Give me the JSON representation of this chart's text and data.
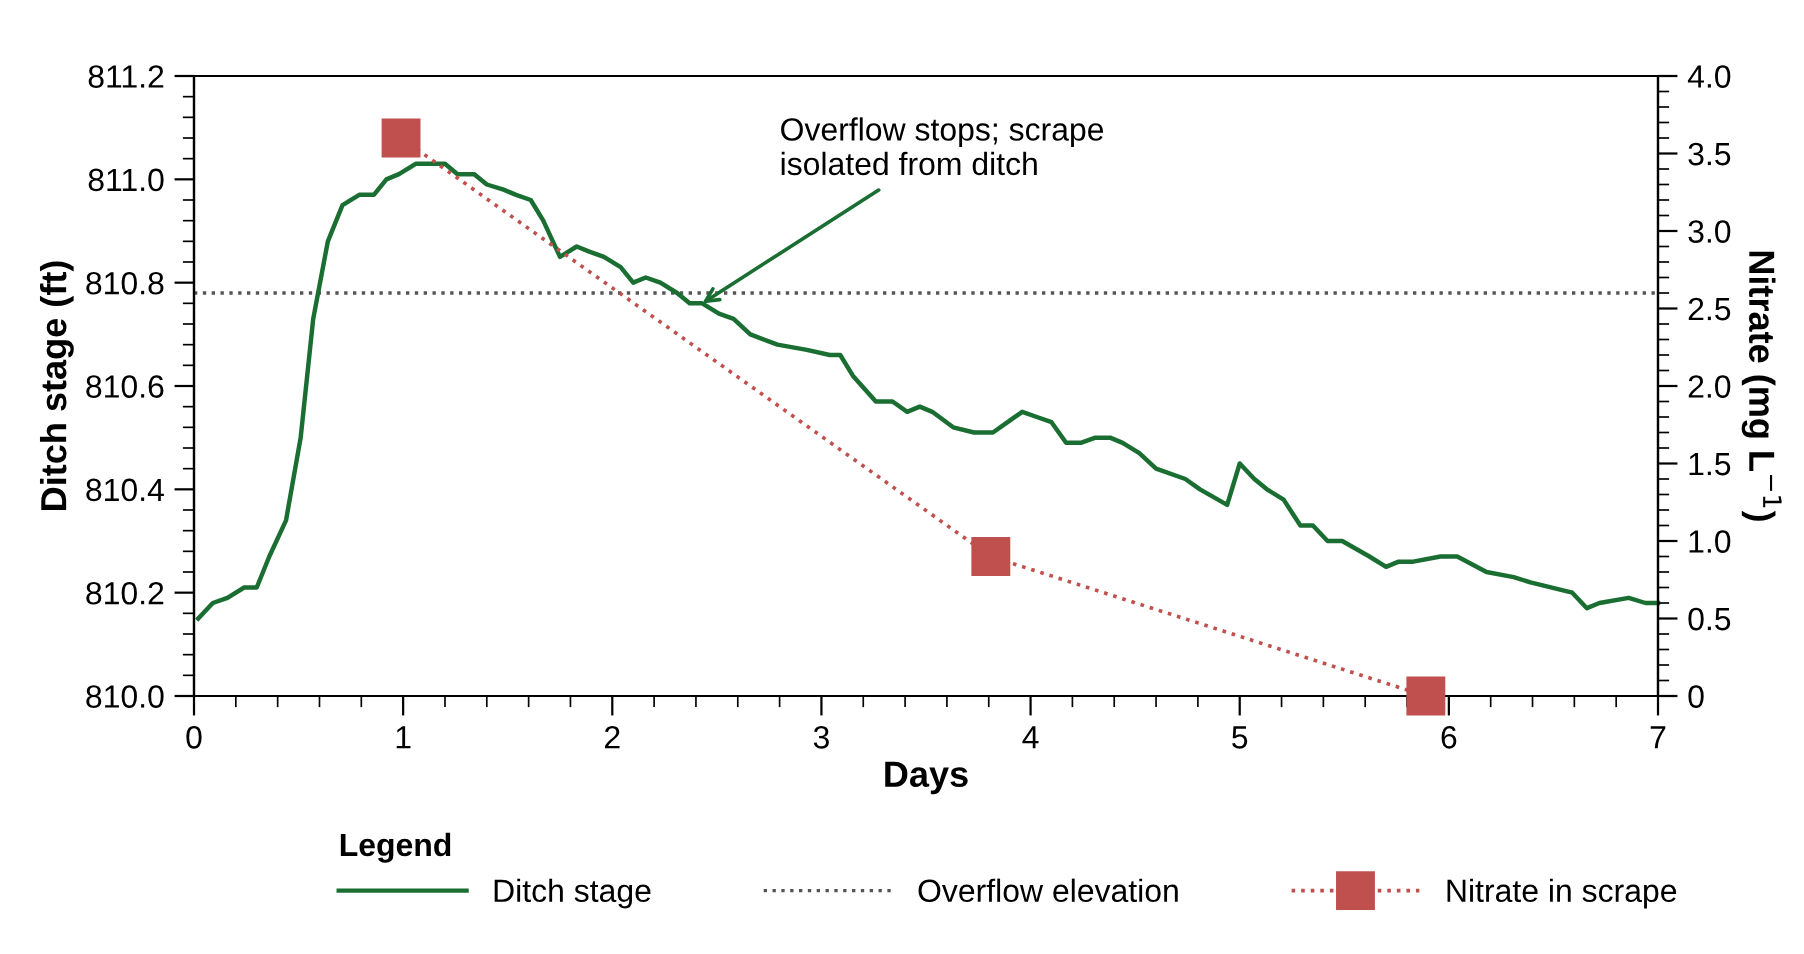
{
  "chart_data": {
    "type": "line",
    "xlabel": "Days",
    "ylabel": "Ditch stage (ft)",
    "y2label": "Nitrate (mg L$^{−1}$)",
    "legend_title": "Legend",
    "xlim": [
      0,
      7
    ],
    "xticks": [
      0,
      1,
      2,
      3,
      4,
      5,
      6,
      7
    ],
    "ylim": [
      810.0,
      811.2
    ],
    "yticks": [
      {
        "value": 810.0,
        "label": "810.0"
      },
      {
        "value": 810.2,
        "label": "810.2"
      },
      {
        "value": 810.4,
        "label": "810.4"
      },
      {
        "value": 810.6,
        "label": "810.6"
      },
      {
        "value": 810.8,
        "label": "810.8"
      },
      {
        "value": 811.0,
        "label": "811.0"
      },
      {
        "value": 811.2,
        "label": "811.2"
      }
    ],
    "y2lim": [
      0,
      4.0
    ],
    "y2ticks": [
      0,
      0.5,
      {
        "value": 1.0,
        "label": "1.0"
      },
      1.5,
      {
        "value": 2.0,
        "label": "2.0"
      },
      2.5,
      {
        "value": 3.0,
        "label": "3.0"
      },
      3.5,
      {
        "value": 4.0,
        "label": "4.0"
      }
    ],
    "grid": false,
    "legend": "bottom",
    "series": [
      {
        "name": "Ditch stage",
        "color": "#1a6e32",
        "marker": "none",
        "line_style": "solid",
        "x": [
          0.02,
          0.09,
          0.16,
          0.24,
          0.3,
          0.36,
          0.44,
          0.51,
          0.57,
          0.64,
          0.71,
          0.79,
          0.86,
          0.92,
          0.98,
          1.06,
          1.13,
          1.2,
          1.26,
          1.34,
          1.4,
          1.48,
          1.54,
          1.61,
          1.67,
          1.75,
          1.83,
          1.89,
          1.96,
          2.04,
          2.1,
          2.16,
          2.23,
          2.31,
          2.37,
          2.43,
          2.51,
          2.58,
          2.66,
          2.79,
          2.93,
          3.04,
          3.09,
          3.15,
          3.26,
          3.34,
          3.41,
          3.47,
          3.53,
          3.63,
          3.73,
          3.82,
          3.89,
          3.96,
          4.03,
          4.1,
          4.17,
          4.24,
          4.31,
          4.38,
          4.44,
          4.52,
          4.6,
          4.74,
          4.81,
          4.94,
          5.0,
          5.07,
          5.13,
          5.21,
          5.29,
          5.35,
          5.42,
          5.49,
          5.62,
          5.7,
          5.76,
          5.83,
          5.96,
          6.04,
          6.18,
          6.31,
          6.39,
          6.59,
          6.66,
          6.72,
          6.86,
          6.94,
          7.0
        ],
        "values": [
          810.15,
          810.18,
          810.19,
          810.21,
          810.21,
          810.27,
          810.34,
          810.5,
          810.73,
          810.88,
          810.95,
          810.97,
          810.97,
          811.0,
          811.01,
          811.03,
          811.03,
          811.03,
          811.01,
          811.01,
          810.99,
          810.98,
          810.97,
          810.96,
          810.92,
          810.85,
          810.87,
          810.86,
          810.85,
          810.83,
          810.8,
          810.81,
          810.8,
          810.78,
          810.76,
          810.76,
          810.74,
          810.73,
          810.7,
          810.68,
          810.67,
          810.66,
          810.66,
          810.62,
          810.57,
          810.57,
          810.55,
          810.56,
          810.55,
          810.52,
          810.51,
          810.51,
          810.53,
          810.55,
          810.54,
          810.53,
          810.49,
          810.49,
          810.5,
          810.5,
          810.49,
          810.47,
          810.44,
          810.42,
          810.4,
          810.37,
          810.45,
          810.42,
          810.4,
          810.38,
          810.33,
          810.33,
          810.3,
          810.3,
          810.27,
          810.25,
          810.26,
          810.26,
          810.27,
          810.27,
          810.24,
          810.23,
          810.22,
          810.2,
          810.17,
          810.18,
          810.19,
          810.18,
          810.18
        ]
      },
      {
        "name": "Nitrate in scrape",
        "color": "#c0504d",
        "axis": "y2",
        "marker": "square",
        "line_style": "dotted",
        "x": [
          0.99,
          3.81,
          5.89
        ],
        "values": [
          3.6,
          0.9,
          0
        ]
      }
    ],
    "ref_lines": [
      {
        "axis": "y",
        "value": 810.78,
        "label": "Overflow elevation",
        "color": "#555555",
        "line_style": "dotted"
      }
    ],
    "annotations": [
      {
        "text": "Overflow stops; scrape\nisolated from ditch",
        "x": 2.43,
        "y": 810.76
      }
    ]
  }
}
